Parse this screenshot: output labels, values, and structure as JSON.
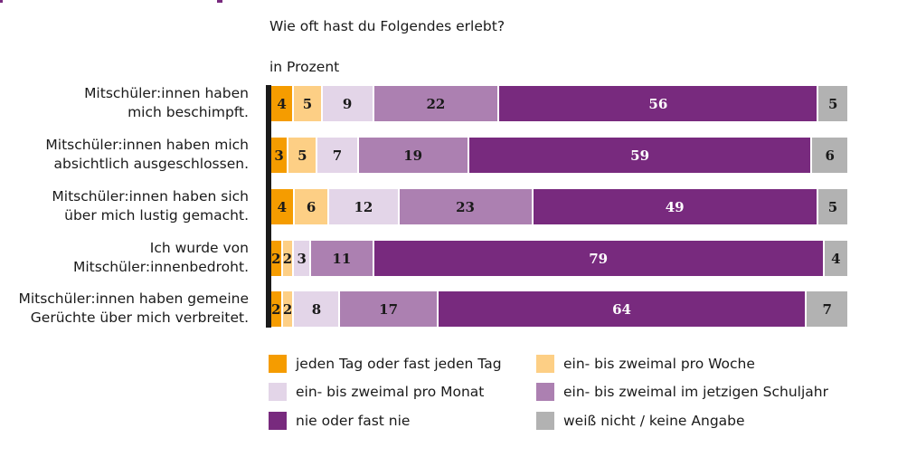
{
  "chart_data": {
    "type": "bar",
    "orientation": "horizontal-stacked-100",
    "title": "Wie oft hast du Folgendes erlebt?",
    "unit_label": "in Prozent",
    "categories": [
      [
        "Mitschüler:innen haben",
        "mich beschimpft."
      ],
      [
        "Mitschüler:innen haben mich",
        "absichtlich ausgeschlossen."
      ],
      [
        "Mitschüler:innen haben sich",
        "über mich lustig gemacht."
      ],
      [
        "Ich wurde von",
        "Mitschüler:innenbedroht."
      ],
      [
        "Mitschüler:innen haben gemeine",
        "Gerüchte über mich verbreitet."
      ]
    ],
    "series": [
      {
        "name": "jeden Tag oder fast jeden Tag",
        "color": "#F59C00",
        "text_color": "#1a1a1a",
        "values": [
          4,
          3,
          4,
          2,
          2
        ]
      },
      {
        "name": "ein- bis zweimal pro Woche",
        "color": "#FDCF85",
        "text_color": "#1a1a1a",
        "values": [
          5,
          5,
          6,
          2,
          2
        ]
      },
      {
        "name": "ein- bis zweimal pro Monat",
        "color": "#E3D5E8",
        "text_color": "#1a1a1a",
        "values": [
          9,
          7,
          12,
          3,
          8
        ]
      },
      {
        "name": "ein- bis zweimal im jetzigen Schuljahr",
        "color": "#AC80B1",
        "text_color": "#1a1a1a",
        "values": [
          22,
          19,
          23,
          11,
          17
        ]
      },
      {
        "name": "nie oder fast nie",
        "color": "#782A7E",
        "text_color": "#ffffff",
        "values": [
          56,
          59,
          49,
          79,
          64
        ]
      },
      {
        "name": "weiß nicht / keine Angabe",
        "color": "#B2B2B2",
        "text_color": "#1a1a1a",
        "values": [
          5,
          6,
          5,
          4,
          7
        ]
      }
    ],
    "xlim": [
      0,
      100
    ],
    "grid": false,
    "legend": "bottom",
    "legend_order": [
      0,
      1,
      2,
      3,
      4,
      5
    ]
  }
}
